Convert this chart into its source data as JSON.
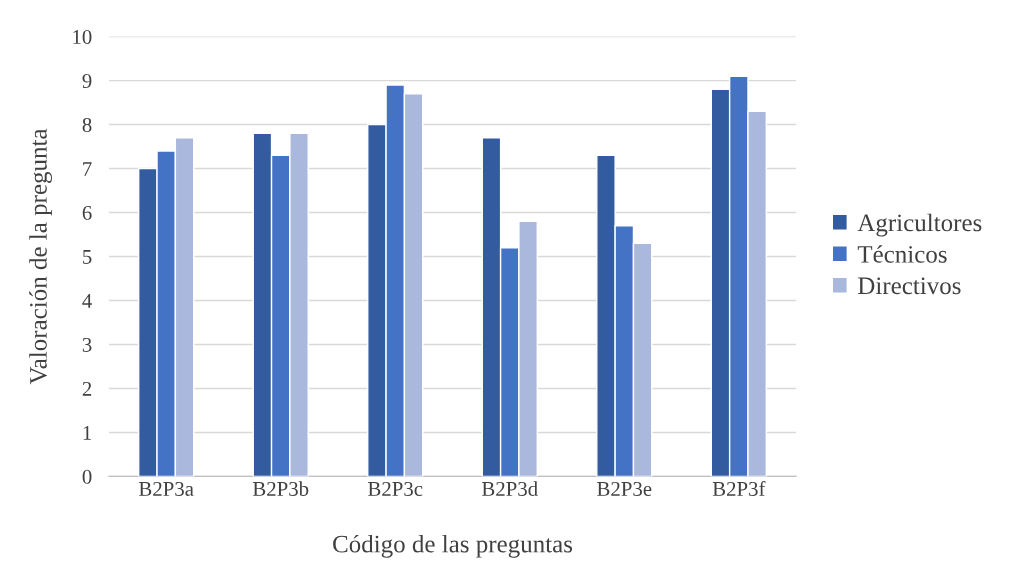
{
  "chart_data": {
    "type": "bar",
    "xlabel": "Código de las preguntas",
    "ylabel": "Valoración de la pregunta",
    "categories": [
      "B2P3a",
      "B2P3b",
      "B2P3c",
      "B2P3d",
      "B2P3e",
      "B2P3f"
    ],
    "series": [
      {
        "name": "Agricultores",
        "color": "#335ca0",
        "values": [
          7.0,
          7.8,
          8.0,
          7.7,
          7.3,
          8.8
        ]
      },
      {
        "name": "Técnicos",
        "color": "#4472c4",
        "values": [
          7.4,
          7.3,
          8.9,
          5.2,
          5.7,
          9.1
        ]
      },
      {
        "name": "Directivos",
        "color": "#a9b8dc",
        "values": [
          7.7,
          7.8,
          8.7,
          5.8,
          5.3,
          8.3
        ]
      }
    ],
    "ylim": [
      0,
      10
    ],
    "yticks": [
      0,
      1,
      2,
      3,
      4,
      5,
      6,
      7,
      8,
      9,
      10
    ],
    "grid": "y",
    "legend": "right"
  }
}
